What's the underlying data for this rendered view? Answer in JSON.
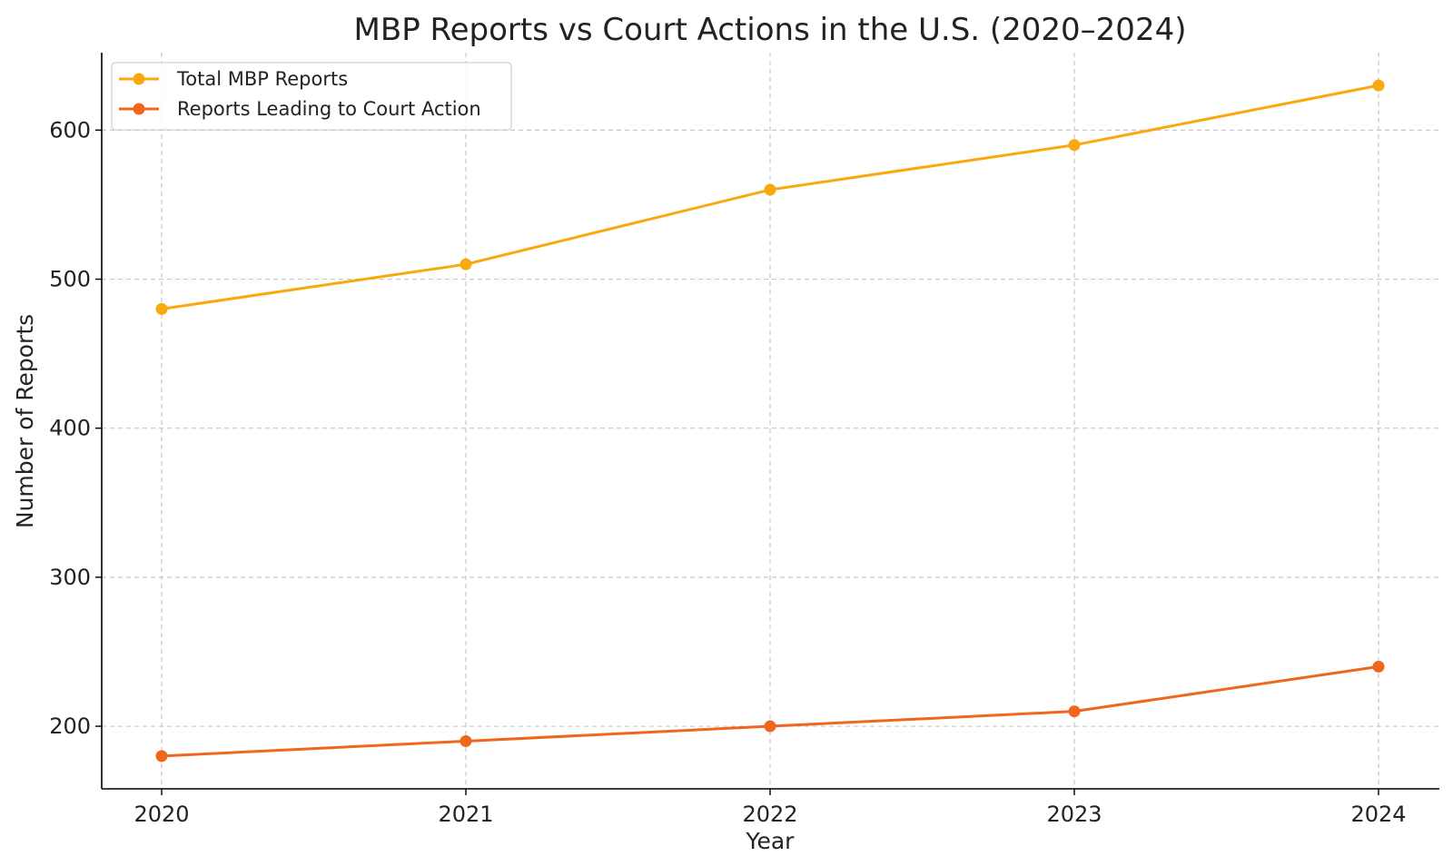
{
  "chart_data": {
    "type": "line",
    "title": "MBP Reports vs Court Actions in the U.S. (2020–2024)",
    "xlabel": "Year",
    "ylabel": "Number of Reports",
    "x": [
      "2020",
      "2021",
      "2022",
      "2023",
      "2024"
    ],
    "yticks": [
      200,
      300,
      400,
      500,
      600
    ],
    "ylim": [
      158,
      652
    ],
    "grid": true,
    "legend_position": "top-left",
    "series": [
      {
        "name": "Total MBP Reports",
        "values": [
          480,
          510,
          560,
          590,
          630
        ],
        "color": "#F9A80E"
      },
      {
        "name": "Reports Leading to Court Action",
        "values": [
          180,
          190,
          200,
          210,
          240
        ],
        "color": "#F0661C"
      }
    ]
  }
}
